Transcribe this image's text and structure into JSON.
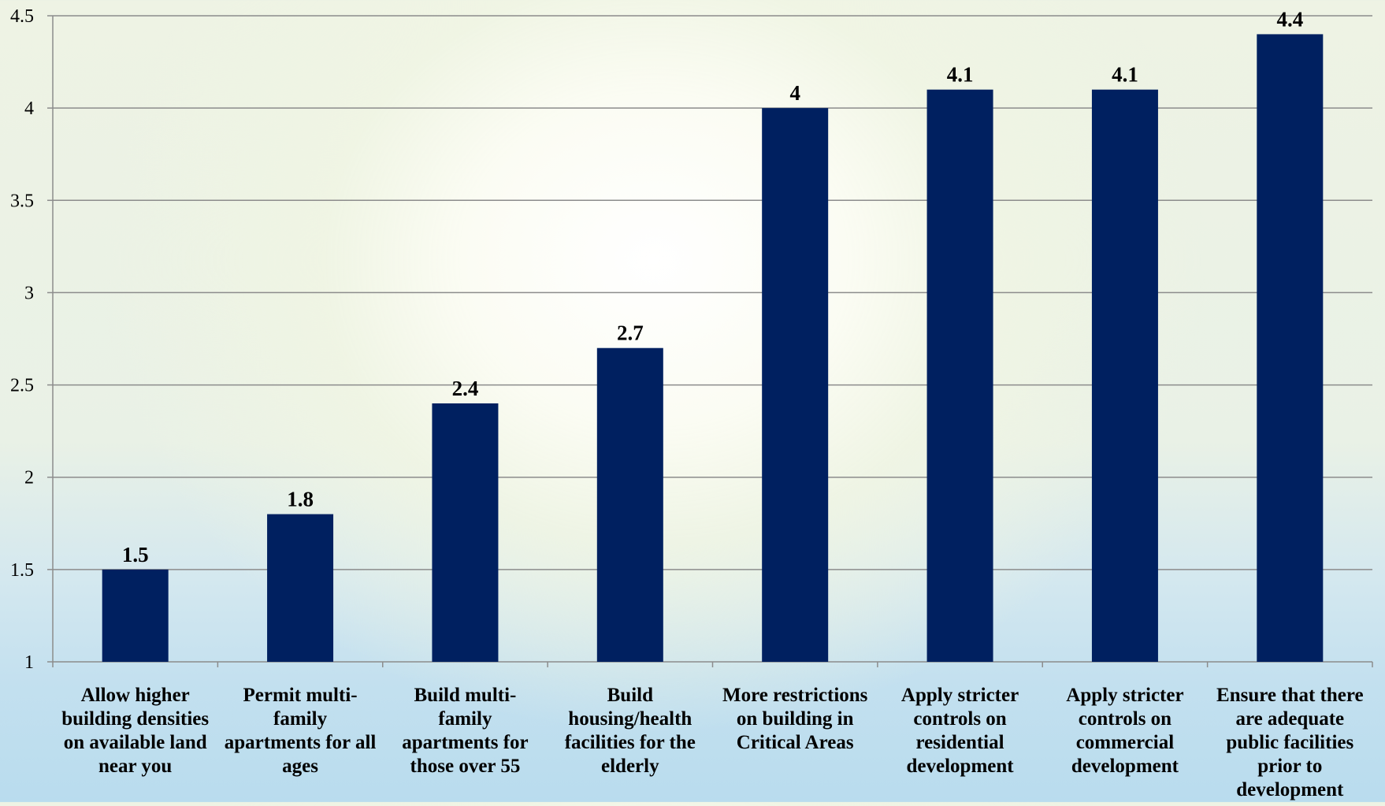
{
  "chart_data": {
    "type": "bar",
    "categories": [
      "Allow higher building densities on available land near you",
      "Permit multi-family apartments for all ages",
      "Build multi-family apartments for those over 55",
      "Build housing/health facilities for the elderly",
      "More restrictions on building in Critical Areas",
      "Apply stricter controls on residential development",
      "Apply stricter controls on commercial development",
      "Ensure that there are adequate public facilities prior to development"
    ],
    "category_lines": [
      [
        "Allow higher",
        "building densities",
        "on available land",
        "near you"
      ],
      [
        "Permit multi-",
        "family",
        "apartments for all",
        "ages"
      ],
      [
        "Build multi-",
        "family",
        "apartments for",
        "those over 55"
      ],
      [
        "Build",
        "housing/health",
        "facilities for the",
        "elderly"
      ],
      [
        "More restrictions",
        "on building in",
        "Critical Areas"
      ],
      [
        "Apply stricter",
        "controls on",
        "residential",
        "development"
      ],
      [
        "Apply stricter",
        "controls on",
        "commercial",
        "development"
      ],
      [
        "Ensure that there",
        "are adequate",
        "public facilities",
        "prior to",
        "development"
      ]
    ],
    "values": [
      1.5,
      1.8,
      2.4,
      2.7,
      4,
      4.1,
      4.1,
      4.4
    ],
    "value_labels": [
      "1.5",
      "1.8",
      "2.4",
      "2.7",
      "4",
      "4.1",
      "4.1",
      "4.4"
    ],
    "y_ticks": [
      "1",
      "1.5",
      "2",
      "2.5",
      "3",
      "3.5",
      "4",
      "4.5"
    ],
    "ylim": [
      1,
      4.5
    ],
    "title": "",
    "xlabel": "",
    "ylabel": "",
    "grid": true,
    "legend": "none",
    "bar_color": "#002060",
    "grid_color": "#8c8c8c"
  }
}
